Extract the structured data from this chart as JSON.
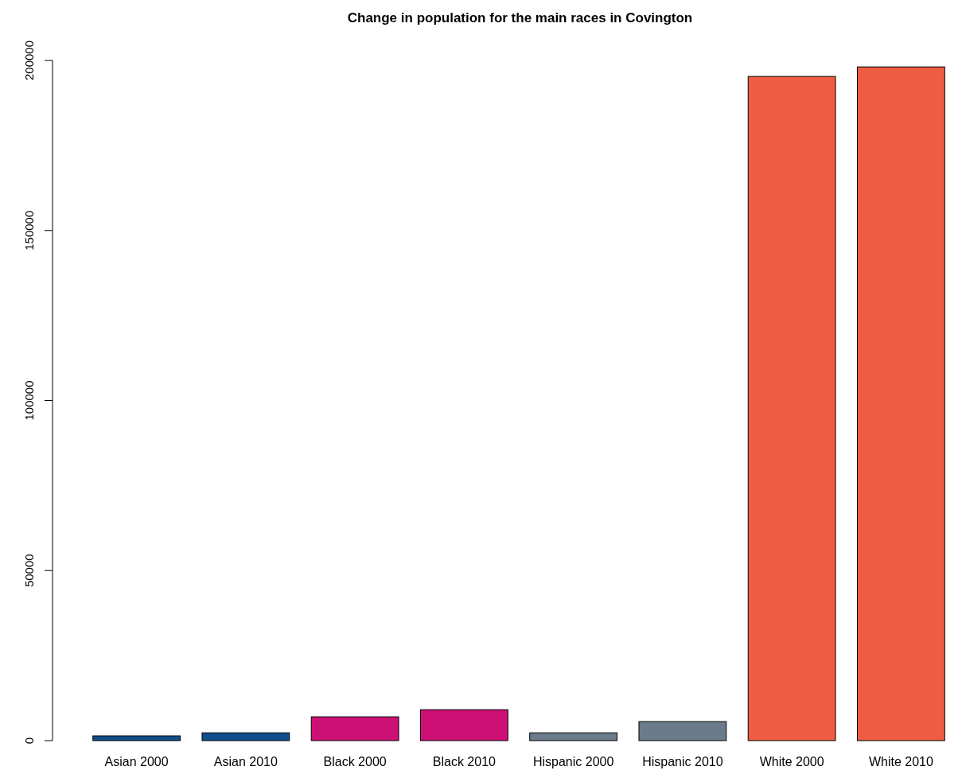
{
  "chart_data": {
    "type": "bar",
    "title": "Change in population for the main races in Covington",
    "categories": [
      "Asian 2000",
      "Asian 2010",
      "Black 2000",
      "Black 2010",
      "Hispanic 2000",
      "Hispanic 2010",
      "White 2000",
      "White 2010"
    ],
    "values": [
      1400,
      2300,
      7000,
      9100,
      2300,
      5600,
      195300,
      198100
    ],
    "colors": [
      "#104e8b",
      "#104e8b",
      "#cd1076",
      "#cd1076",
      "#6c7b8b",
      "#6c7b8b",
      "#ee5c42",
      "#ee5c42"
    ],
    "ylim": [
      0,
      200000
    ],
    "yticks": [
      0,
      50000,
      100000,
      150000,
      200000
    ]
  }
}
